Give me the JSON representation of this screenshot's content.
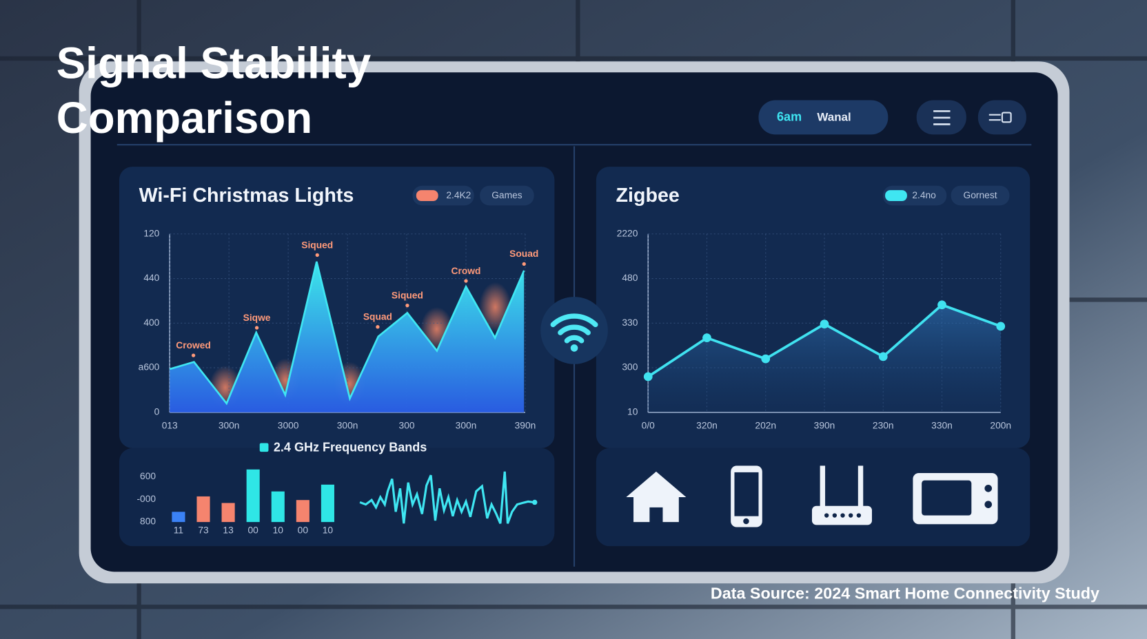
{
  "title": [
    "Signal Stability",
    "Comparison"
  ],
  "header": {
    "pill": [
      "6am",
      "Wanal"
    ]
  },
  "source": "Data Source: 2024 Smart Home Connectivity Study",
  "chart_data": [
    {
      "type": "area",
      "title": "Wi-Fi Christmas Lights",
      "badges": [
        "2.4K2",
        "Games"
      ],
      "color": "#3fe6f2",
      "x": [
        0,
        0.41,
        0.96,
        1.46,
        1.95,
        2.48,
        3.04,
        3.52,
        4.01,
        4.51,
        5.0,
        5.49,
        5.98
      ],
      "values": [
        0.97,
        1.13,
        0.2,
        1.79,
        0.39,
        3.38,
        0.31,
        1.7,
        2.23,
        1.38,
        2.82,
        1.67,
        3.18
      ],
      "xlim": [
        0,
        6
      ],
      "xticks": [
        {
          "value": 0,
          "label": "013"
        },
        {
          "value": 1,
          "label": "300n"
        },
        {
          "value": 2,
          "label": "3000"
        },
        {
          "value": 3,
          "label": "300n"
        },
        {
          "value": 4,
          "label": "300"
        },
        {
          "value": 5,
          "label": "300n"
        },
        {
          "value": 6,
          "label": "390n"
        }
      ],
      "ylim": [
        0,
        4
      ],
      "yticks": [
        {
          "value": 4,
          "label": "120"
        },
        {
          "value": 3,
          "label": "440"
        },
        {
          "value": 2,
          "label": "400"
        },
        {
          "value": 1,
          "label": "a600"
        },
        {
          "value": 0,
          "label": "0"
        }
      ],
      "grid": true,
      "annotations": [
        {
          "text": "Crowed",
          "x": 0.4,
          "y": 1.49
        },
        {
          "text": "Siqwe",
          "x": 1.47,
          "y": 2.11
        },
        {
          "text": "Siqued",
          "x": 2.49,
          "y": 3.74
        },
        {
          "text": "Squad",
          "x": 3.51,
          "y": 2.13
        },
        {
          "text": "Siqued",
          "x": 4.01,
          "y": 2.61
        },
        {
          "text": "Crowd",
          "x": 5.0,
          "y": 3.16
        },
        {
          "text": "Souad",
          "x": 5.98,
          "y": 3.54
        }
      ]
    },
    {
      "type": "line",
      "title": "Zigbee",
      "badges": [
        "2.4no",
        "Gornest"
      ],
      "color": "#40e2f0",
      "categories": [
        "0/0",
        "320n",
        "202n",
        "390n",
        "230n",
        "330n",
        "200n"
      ],
      "values": [
        0.8,
        1.67,
        1.2,
        1.98,
        1.25,
        2.41,
        1.93
      ],
      "ylim": [
        0,
        4
      ],
      "yticks": [
        {
          "value": 4,
          "label": "2220"
        },
        {
          "value": 3,
          "label": "480"
        },
        {
          "value": 2,
          "label": "330"
        },
        {
          "value": 1,
          "label": "300"
        },
        {
          "value": 0,
          "label": "10"
        }
      ],
      "grid": true
    },
    {
      "type": "bar",
      "categories": [
        "11",
        "73",
        "13",
        "00",
        "10",
        "00",
        "10"
      ],
      "series": [
        {
          "name": "2.4 GHz Frequency Bands",
          "color": "#2fe6e6",
          "colors": [
            "#3b82f6",
            "#f5846e",
            "#f5846e",
            "#2fe6e6",
            "#2fe6e6",
            "#f5846e",
            "#2fe6e6"
          ],
          "values": [
            0.45,
            1.13,
            0.84,
            2.32,
            1.35,
            0.97,
            1.65
          ]
        }
      ],
      "ylim": [
        0,
        2
      ],
      "yticks": [
        {
          "value": 2,
          "label": "600"
        },
        {
          "value": 1,
          "label": "-000"
        },
        {
          "value": 0,
          "label": "800"
        }
      ]
    }
  ]
}
